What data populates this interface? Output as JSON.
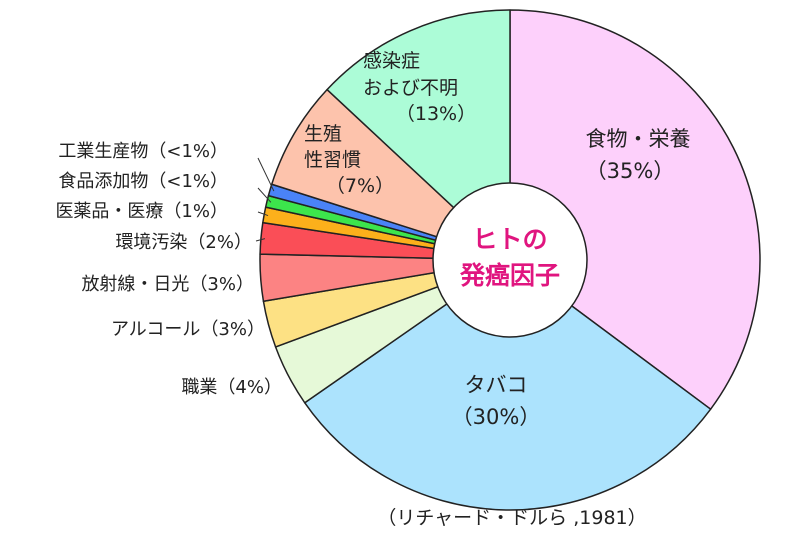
{
  "chart_data": {
    "type": "pie",
    "variant": "donut",
    "center_label": [
      "ヒトの",
      "発癌因子"
    ],
    "source": "（リチャード・ドルら ,1981）",
    "slices": [
      {
        "label": "食物・栄養",
        "pct_text": "（35%）",
        "value": 35,
        "color": "#fdd0fb"
      },
      {
        "label": "タバコ",
        "pct_text": "（30%）",
        "value": 30,
        "color": "#ace3fd"
      },
      {
        "label": "職業",
        "pct_text": "（4%）",
        "value": 4,
        "color": "#e6f9d8"
      },
      {
        "label": "アルコール",
        "pct_text": "（3%）",
        "value": 3,
        "color": "#fde184"
      },
      {
        "label": "放射線・日光",
        "pct_text": "（3%）",
        "value": 3,
        "color": "#fc8383"
      },
      {
        "label": "環境汚染",
        "pct_text": "（2%）",
        "value": 2,
        "color": "#fa4e57"
      },
      {
        "label": "医薬品・医療",
        "pct_text": "（1%）",
        "value": 1,
        "color": "#fcb01b"
      },
      {
        "label": "食品添加物",
        "pct_text": "（<1%）",
        "value": 0.75,
        "color": "#3ce54c"
      },
      {
        "label": "工業生産物",
        "pct_text": "（<1%）",
        "value": 0.75,
        "color": "#4a83f7"
      },
      {
        "label": "生殖・性習慣",
        "label_lines": [
          "生殖",
          "性習慣"
        ],
        "pct_text": "（7%）",
        "value": 7,
        "color": "#fdc3ac"
      },
      {
        "label": "感染症およ び不明",
        "label_lines": [
          "感染症",
          "および不明"
        ],
        "pct_text": "（13%）",
        "value": 13,
        "color": "#acfcd7"
      }
    ]
  }
}
